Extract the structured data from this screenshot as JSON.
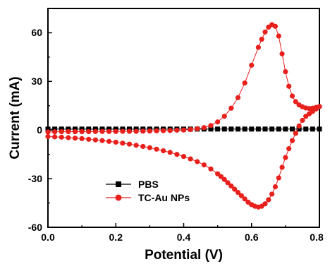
{
  "chart_data": {
    "type": "scatter",
    "xlabel": "Potential (V)",
    "ylabel": "Current (mA)",
    "xlim": [
      0.0,
      0.8
    ],
    "ylim": [
      -60,
      75
    ],
    "x_ticks": [
      "0.0",
      "0.2",
      "0.4",
      "0.6",
      "0.8"
    ],
    "y_ticks": [
      "-60",
      "-30",
      "0",
      "30",
      "60"
    ],
    "grid": false,
    "legend_position": "bottom-left",
    "series": [
      {
        "name": "PBS",
        "color": "#000000",
        "marker": "square",
        "x": [
          0.0,
          0.02,
          0.04,
          0.06,
          0.08,
          0.1,
          0.12,
          0.14,
          0.16,
          0.18,
          0.2,
          0.22,
          0.24,
          0.26,
          0.28,
          0.3,
          0.32,
          0.34,
          0.36,
          0.38,
          0.4,
          0.42,
          0.44,
          0.46,
          0.48,
          0.5,
          0.52,
          0.54,
          0.56,
          0.58,
          0.6,
          0.62,
          0.64,
          0.66,
          0.68,
          0.7,
          0.72,
          0.74,
          0.76,
          0.78,
          0.8
        ],
        "y": [
          0.6,
          0.6,
          0.6,
          0.6,
          0.6,
          0.6,
          0.6,
          0.6,
          0.6,
          0.6,
          0.6,
          0.6,
          0.6,
          0.6,
          0.6,
          0.6,
          0.6,
          0.6,
          0.6,
          0.6,
          0.6,
          0.6,
          0.6,
          0.6,
          0.6,
          0.6,
          0.6,
          0.6,
          0.6,
          0.6,
          0.6,
          0.6,
          0.6,
          0.6,
          0.6,
          0.6,
          0.6,
          0.6,
          0.6,
          0.6,
          0.6
        ]
      },
      {
        "name": "TC-Au NPs",
        "color": "#e8201c",
        "marker": "circle",
        "x": [
          0.0,
          0.02,
          0.04,
          0.06,
          0.08,
          0.1,
          0.12,
          0.14,
          0.16,
          0.18,
          0.2,
          0.22,
          0.24,
          0.26,
          0.28,
          0.3,
          0.32,
          0.34,
          0.36,
          0.38,
          0.4,
          0.42,
          0.44,
          0.46,
          0.48,
          0.5,
          0.52,
          0.54,
          0.56,
          0.58,
          0.6,
          0.62,
          0.63,
          0.64,
          0.65,
          0.66,
          0.67,
          0.68,
          0.69,
          0.7,
          0.71,
          0.72,
          0.73,
          0.74,
          0.75,
          0.76,
          0.77,
          0.78,
          0.79,
          0.8,
          0.8,
          0.79,
          0.78,
          0.77,
          0.76,
          0.75,
          0.74,
          0.73,
          0.72,
          0.71,
          0.7,
          0.69,
          0.68,
          0.67,
          0.66,
          0.65,
          0.64,
          0.63,
          0.62,
          0.61,
          0.6,
          0.59,
          0.58,
          0.57,
          0.56,
          0.55,
          0.54,
          0.53,
          0.52,
          0.51,
          0.5,
          0.48,
          0.46,
          0.44,
          0.42,
          0.4,
          0.38,
          0.36,
          0.34,
          0.32,
          0.3,
          0.28,
          0.26,
          0.24,
          0.22,
          0.2,
          0.18,
          0.16,
          0.14,
          0.12,
          0.1,
          0.08,
          0.06,
          0.04,
          0.02,
          0.0
        ],
        "y": [
          -1.2,
          -1.1,
          -1.0,
          -1.0,
          -1.0,
          -1.0,
          -1.0,
          -0.9,
          -0.9,
          -0.9,
          -0.9,
          -0.8,
          -0.8,
          -0.8,
          -0.7,
          -0.6,
          -0.5,
          -0.4,
          -0.3,
          -0.1,
          0.0,
          0.3,
          0.8,
          1.5,
          2.8,
          5.0,
          8.5,
          13.5,
          20.0,
          29.0,
          40.0,
          51.0,
          56.0,
          60.5,
          63.5,
          65.0,
          64.0,
          58.0,
          47.0,
          36.0,
          27.0,
          21.0,
          17.5,
          15.5,
          14.3,
          13.6,
          13.3,
          13.5,
          14.0,
          14.5,
          14.5,
          13.0,
          11.5,
          10.0,
          8.5,
          6.0,
          2.5,
          -2.0,
          -6.5,
          -11.5,
          -17.0,
          -23.0,
          -29.5,
          -35.0,
          -39.5,
          -43.0,
          -45.5,
          -47.0,
          -47.5,
          -47.0,
          -46.0,
          -44.5,
          -42.5,
          -40.5,
          -38.5,
          -36.5,
          -34.5,
          -32.5,
          -30.5,
          -28.7,
          -27.0,
          -24.0,
          -21.5,
          -19.5,
          -17.8,
          -16.3,
          -15.0,
          -13.8,
          -12.8,
          -11.8,
          -10.9,
          -10.1,
          -9.4,
          -8.7,
          -8.1,
          -7.5,
          -7.0,
          -6.5,
          -6.1,
          -5.7,
          -5.3,
          -5.0,
          -4.7,
          -4.4,
          -4.2,
          -4.0
        ]
      }
    ]
  }
}
